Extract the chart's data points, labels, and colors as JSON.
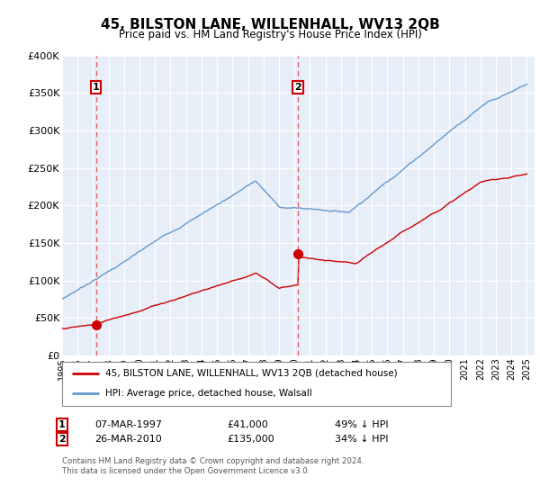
{
  "title": "45, BILSTON LANE, WILLENHALL, WV13 2QB",
  "subtitle": "Price paid vs. HM Land Registry's House Price Index (HPI)",
  "ylim": [
    0,
    400000
  ],
  "yticks": [
    0,
    50000,
    100000,
    150000,
    200000,
    250000,
    300000,
    350000,
    400000
  ],
  "ytick_labels": [
    "£0",
    "£50K",
    "£100K",
    "£150K",
    "£200K",
    "£250K",
    "£300K",
    "£350K",
    "£400K"
  ],
  "sale1_date_num": 1997.18,
  "sale1_price": 41000,
  "sale1_label": "1",
  "sale1_date_str": "07-MAR-1997",
  "sale1_amount": "£41,000",
  "sale1_pct": "49% ↓ HPI",
  "sale2_date_num": 2010.23,
  "sale2_price": 135000,
  "sale2_label": "2",
  "sale2_date_str": "26-MAR-2010",
  "sale2_amount": "£135,000",
  "sale2_pct": "34% ↓ HPI",
  "legend_line1": "45, BILSTON LANE, WILLENHALL, WV13 2QB (detached house)",
  "legend_line2": "HPI: Average price, detached house, Walsall",
  "line_color": "#cc0000",
  "hpi_color": "#6699cc",
  "marker_color": "#cc0000",
  "dashed_color": "#e06060",
  "bg_color": "#e8eef8",
  "grid_color": "#ffffff",
  "footnote": "Contains HM Land Registry data © Crown copyright and database right 2024.\nThis data is licensed under the Open Government Licence v3.0.",
  "xstart": 1995,
  "xend": 2025.5
}
